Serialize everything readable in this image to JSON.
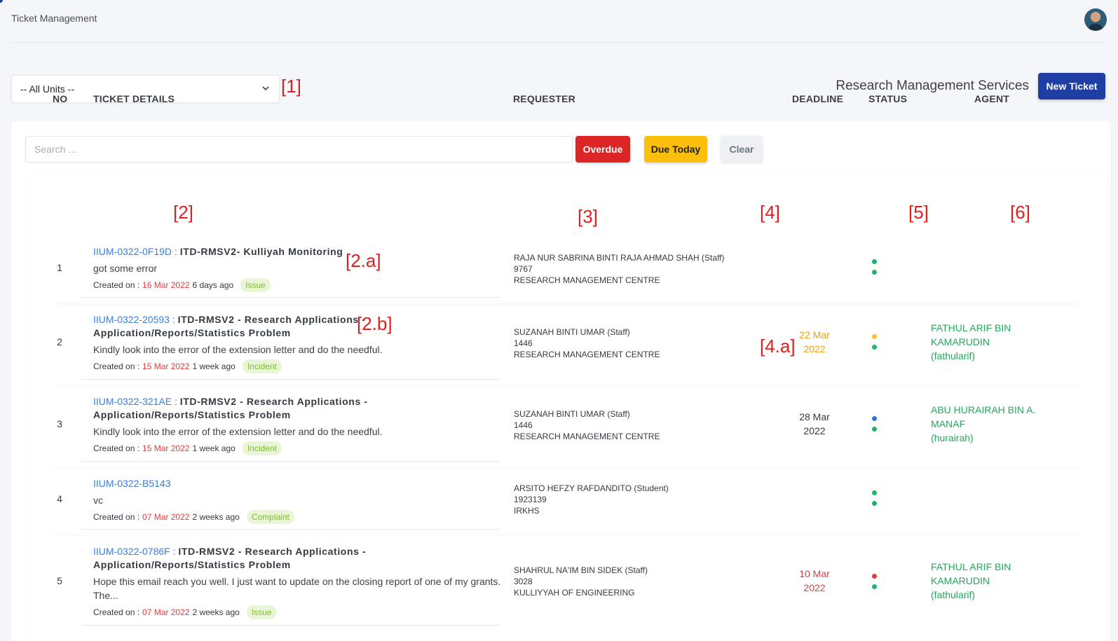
{
  "header": {
    "title": "Ticket Management"
  },
  "unit_select": {
    "value": "-- All Units --"
  },
  "department": "Research Management Services",
  "new_ticket_label": "New Ticket",
  "search": {
    "placeholder": "Search ..."
  },
  "filters": {
    "overdue": "Overdue",
    "due_today": "Due Today",
    "clear": "Clear"
  },
  "columns": {
    "no": "NO",
    "details": "TICKET DETAILS",
    "requester": "REQUESTER",
    "deadline": "DEADLINE",
    "status": "STATUS",
    "agent": "AGENT"
  },
  "annotations": {
    "a1": "[1]",
    "a2": "[2]",
    "a2a": "[2.a]",
    "a2b": "[2.b]",
    "a3": "[3]",
    "a4": "[4]",
    "a4a": "[4.a]",
    "a5": "[5]",
    "a6": "[6]"
  },
  "colors": {
    "primary": "#1f3ea3",
    "overdue": "#dc2626",
    "due": "#fcbf0c",
    "link": "#3b7dd8",
    "agent": "#26a65b",
    "badge_bg": "#e9f5d6",
    "badge_fg": "#7bbf2a"
  },
  "rows": [
    {
      "no": "1",
      "id": "IIUM-0322-0F19D",
      "sep": " : ",
      "title": "ITD-RMSV2- Kulliyah Monitoring",
      "description": "got some error",
      "created_label": "Created on : ",
      "created_date": "16 Mar 2022",
      "ago": "6 days ago",
      "type": "Issue",
      "requester_name": "RAJA NUR SABRINA BINTI RAJA AHMAD SHAH (Staff)",
      "requester_id": "9767",
      "requester_dept": "RESEARCH MANAGEMENT CENTRE",
      "deadline_1": "",
      "deadline_2": "",
      "deadline_color": "#343a40",
      "status_colors": [
        "#1fb36b",
        "#1fb36b"
      ],
      "agent_1": "",
      "agent_2": "",
      "agent_3": ""
    },
    {
      "no": "2",
      "id": "IIUM-0322-20593",
      "sep": " : ",
      "title": "ITD-RMSV2 - Research Applications - Application/Reports/Statistics Problem",
      "description": "Kindly look into the error of the extension letter and do the needful.",
      "created_label": "Created on : ",
      "created_date": "15 Mar 2022",
      "ago": "1 week ago",
      "type": "Incident",
      "requester_name": "SUZANAH BINTI UMAR (Staff)",
      "requester_id": "1446",
      "requester_dept": "RESEARCH MANAGEMENT CENTRE",
      "deadline_1": "22 Mar",
      "deadline_2": "2022",
      "deadline_color": "#e9a212",
      "status_colors": [
        "#f4c430",
        "#1fb36b"
      ],
      "agent_1": "FATHUL ARIF BIN",
      "agent_2": "KAMARUDIN",
      "agent_3": "(fathularif)"
    },
    {
      "no": "3",
      "id": "IIUM-0322-321AE",
      "sep": " : ",
      "title": "ITD-RMSV2 - Research Applications - Application/Reports/Statistics Problem",
      "description": "Kindly look into the error of the extension letter and do the needful.",
      "created_label": "Created on : ",
      "created_date": "15 Mar 2022",
      "ago": "1 week ago",
      "type": "Incident",
      "requester_name": "SUZANAH BINTI UMAR (Staff)",
      "requester_id": "1446",
      "requester_dept": "RESEARCH MANAGEMENT CENTRE",
      "deadline_1": "28 Mar",
      "deadline_2": "2022",
      "deadline_color": "#343a40",
      "status_colors": [
        "#2f6fe0",
        "#1fb36b"
      ],
      "agent_1": "ABU HURAIRAH BIN A.",
      "agent_2": "MANAF",
      "agent_3": "(hurairah)"
    },
    {
      "no": "4",
      "id": "IIUM-0322-B5143",
      "sep": "",
      "title": "",
      "description": "vc",
      "created_label": "Created on : ",
      "created_date": "07 Mar 2022",
      "ago": "2 weeks ago",
      "type": "Complaint",
      "requester_name": "ARSITO HEFZY RAFDANDITO (Student)",
      "requester_id": "1923139",
      "requester_dept": "IRKHS",
      "deadline_1": "",
      "deadline_2": "",
      "deadline_color": "#343a40",
      "status_colors": [
        "#1fb36b",
        "#1fb36b"
      ],
      "agent_1": "",
      "agent_2": "",
      "agent_3": ""
    },
    {
      "no": "5",
      "id": "IIUM-0322-0786F",
      "sep": " : ",
      "title": "ITD-RMSV2 - Research Applications - Application/Reports/Statistics Problem",
      "description": "Hope this email reach you well. I just want to update on the closing report of one of my grants. The...",
      "created_label": "Created on : ",
      "created_date": "07 Mar 2022",
      "ago": "2 weeks ago",
      "type": "Issue",
      "requester_name": "SHAHRUL NA'IM BIN SIDEK (Staff)",
      "requester_id": "3028",
      "requester_dept": "KULLIYYAH OF ENGINEERING",
      "deadline_1": "10 Mar",
      "deadline_2": "2022",
      "deadline_color": "#e23b3b",
      "status_colors": [
        "#e23b3b",
        "#1fb36b"
      ],
      "agent_1": "FATHUL ARIF BIN",
      "agent_2": "KAMARUDIN",
      "agent_3": "(fathularif)"
    }
  ]
}
